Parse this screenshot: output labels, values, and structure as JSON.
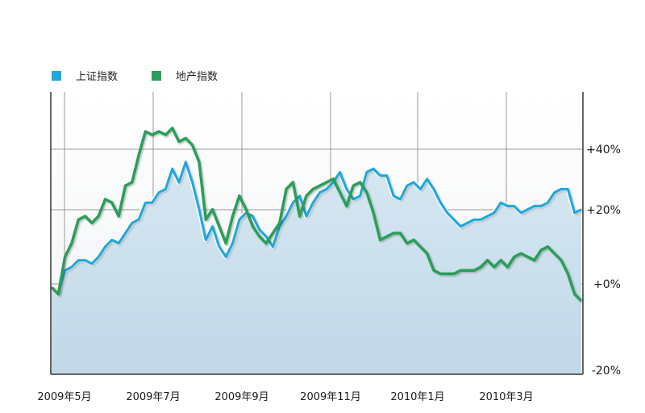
{
  "chart_data": {
    "type": "area",
    "x_ticks": [
      "2009年5月",
      "2009年7月",
      "2009年9月",
      "2009年11月",
      "2010年1月",
      "2010年3月"
    ],
    "y_ticks": [
      "+40%",
      "+20%",
      "+0%",
      "-20%"
    ],
    "ylim": [
      -22,
      55
    ],
    "grid": true,
    "legend_position": "top-left",
    "series": [
      {
        "name": "上证指数",
        "color": "#1fa8df",
        "values": [
          -1,
          -3,
          4,
          5,
          7,
          7,
          6,
          8,
          11,
          13,
          12,
          15,
          18,
          19,
          24,
          24,
          27,
          28,
          34,
          30,
          36,
          30,
          22,
          13,
          17,
          11,
          8,
          12,
          19,
          21,
          20,
          16,
          14,
          11,
          17,
          20,
          24,
          26,
          20,
          24,
          27,
          28,
          30,
          33,
          28,
          25,
          26,
          33,
          34,
          32,
          32,
          26,
          25,
          29,
          30,
          28,
          31,
          28,
          24,
          21,
          19,
          17,
          18,
          19,
          19,
          20,
          21,
          24,
          23,
          23,
          21,
          22,
          23,
          23,
          24,
          27,
          28,
          28,
          21,
          22
        ]
      },
      {
        "name": "地产指数",
        "color": "#2a9e58",
        "values": [
          -1,
          -3,
          8,
          12,
          19,
          20,
          18,
          20,
          25,
          24,
          20,
          29,
          30,
          38,
          45,
          44,
          45,
          44,
          46,
          42,
          43,
          41,
          36,
          19,
          22,
          17,
          12,
          20,
          26,
          22,
          17,
          14,
          12,
          15,
          18,
          28,
          30,
          20,
          26,
          28,
          29,
          30,
          31,
          27,
          23,
          29,
          30,
          27,
          21,
          13,
          14,
          15,
          15,
          12,
          13,
          11,
          9,
          4,
          3,
          3,
          3,
          4,
          4,
          4,
          5,
          7,
          5,
          7,
          5,
          8,
          9,
          8,
          7,
          10,
          11,
          9,
          7,
          3,
          -3,
          -5
        ]
      }
    ]
  }
}
